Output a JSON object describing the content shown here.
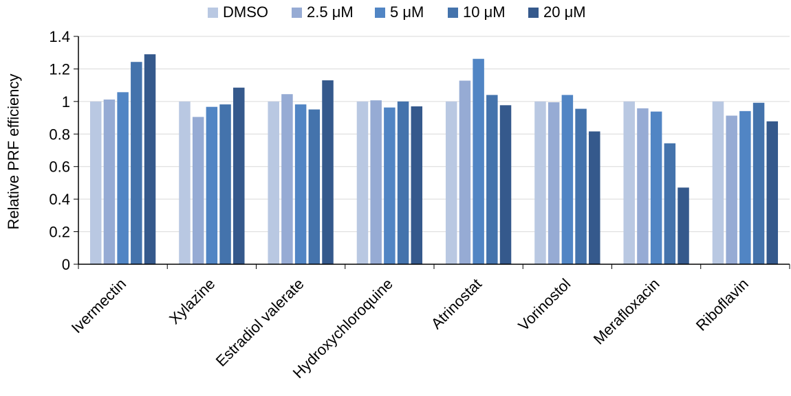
{
  "chart_data": {
    "type": "bar",
    "ylabel": "Relative PRF efficiency",
    "ylim": [
      0,
      1.4
    ],
    "yticks": [
      "0",
      "0.2",
      "0.4",
      "0.6",
      "0.8",
      "1",
      "1.2",
      "1.4"
    ],
    "grid": true,
    "legend_position": "top",
    "categories": [
      "Ivermectin",
      "Xylazine",
      "Estradiol valerate",
      "Hydroxychloroquine",
      "Atrinostat",
      "Vorinostol",
      "Merafloxacin",
      "Riboflavin"
    ],
    "series": [
      {
        "name": "DMSO",
        "color": "#b9c8e2",
        "values": [
          1.0,
          1.0,
          1.0,
          1.0,
          1.0,
          1.0,
          1.0,
          1.0
        ]
      },
      {
        "name": "2.5 μM",
        "color": "#96abd4",
        "values": [
          1.012,
          0.905,
          1.045,
          1.007,
          1.128,
          0.995,
          0.958,
          0.913
        ]
      },
      {
        "name": "5 μM",
        "color": "#5185c4",
        "values": [
          1.057,
          0.967,
          0.982,
          0.963,
          1.262,
          1.04,
          0.938,
          0.941
        ]
      },
      {
        "name": "10 μM",
        "color": "#4473ac",
        "values": [
          1.243,
          0.982,
          0.951,
          1.0,
          1.04,
          0.955,
          0.743,
          0.992
        ]
      },
      {
        "name": "20 μM",
        "color": "#35598c",
        "values": [
          1.29,
          1.085,
          1.13,
          0.97,
          0.977,
          0.816,
          0.471,
          0.878
        ]
      }
    ]
  }
}
